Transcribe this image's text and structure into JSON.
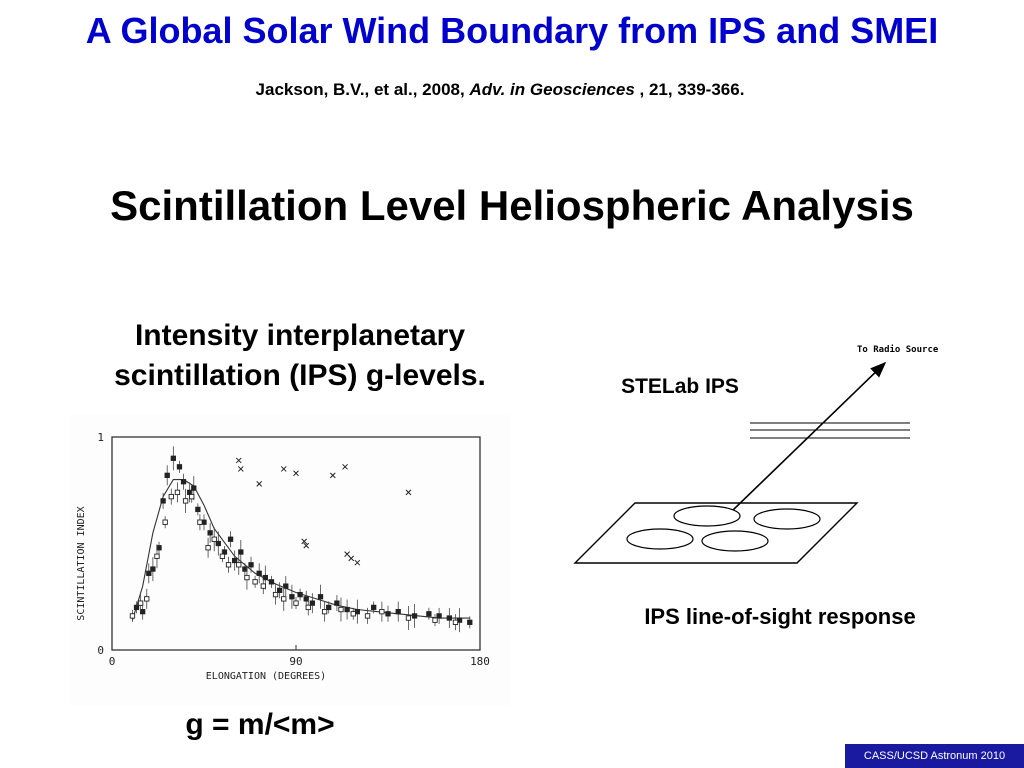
{
  "slide": {
    "title": "A Global Solar Wind Boundary from IPS and SMEI",
    "citation": {
      "authors": "Jackson, B.V., et al., 2008, ",
      "journal": "Adv. in Geosciences",
      "rest": " , 21, 339-366."
    },
    "heading": "Scintillation Level Heliospheric Analysis",
    "left_caption": "Intensity interplanetary scintillation (IPS) g-levels.",
    "formula": "g = m/<m>",
    "stelab_label": "STELab IPS",
    "right_caption": "IPS line-of-sight response",
    "radio_source_label": "To Radio Source",
    "footer": "CASS/UCSD Astronum 2010"
  },
  "chart_data": {
    "type": "scatter",
    "xlabel": "ELONGATION (DEGREES)",
    "ylabel": "SCINTILLATION INDEX",
    "xlim": [
      0,
      180
    ],
    "ylim": [
      0,
      1
    ],
    "x_ticks": [
      "0",
      "90",
      "180"
    ],
    "y_ticks": [
      "0",
      "1"
    ],
    "curve": {
      "x": [
        10,
        15,
        20,
        25,
        30,
        35,
        40,
        45,
        50,
        60,
        70,
        80,
        90,
        100,
        110,
        120,
        130,
        140,
        150,
        160,
        170,
        175
      ],
      "y": [
        0.14,
        0.3,
        0.55,
        0.72,
        0.8,
        0.8,
        0.77,
        0.68,
        0.57,
        0.44,
        0.36,
        0.31,
        0.27,
        0.24,
        0.21,
        0.19,
        0.18,
        0.17,
        0.16,
        0.15,
        0.15,
        0.15
      ]
    },
    "series": [
      {
        "marker": "filled-square",
        "x": [
          12,
          15,
          18,
          20,
          23,
          25,
          27,
          30,
          33,
          35,
          38,
          40,
          42,
          45,
          48,
          52,
          55,
          58,
          60,
          63,
          65,
          68,
          72,
          75,
          78,
          82,
          85,
          88,
          92,
          95,
          98,
          102,
          106,
          110,
          115,
          120,
          128,
          135,
          140,
          148,
          155,
          160,
          165,
          170,
          175
        ],
        "y": [
          0.2,
          0.18,
          0.36,
          0.38,
          0.48,
          0.7,
          0.82,
          0.9,
          0.86,
          0.79,
          0.74,
          0.76,
          0.66,
          0.6,
          0.55,
          0.5,
          0.46,
          0.52,
          0.42,
          0.46,
          0.38,
          0.4,
          0.36,
          0.34,
          0.32,
          0.28,
          0.3,
          0.25,
          0.26,
          0.24,
          0.22,
          0.25,
          0.2,
          0.22,
          0.19,
          0.18,
          0.2,
          0.17,
          0.18,
          0.16,
          0.17,
          0.16,
          0.15,
          0.14,
          0.13
        ]
      },
      {
        "marker": "open-square",
        "x": [
          10,
          14,
          17,
          22,
          26,
          29,
          32,
          36,
          39,
          43,
          47,
          50,
          54,
          57,
          62,
          66,
          70,
          74,
          80,
          84,
          90,
          96,
          104,
          112,
          118,
          125,
          132,
          145,
          158,
          168
        ],
        "y": [
          0.16,
          0.22,
          0.24,
          0.44,
          0.6,
          0.72,
          0.74,
          0.7,
          0.72,
          0.6,
          0.48,
          0.52,
          0.44,
          0.4,
          0.4,
          0.34,
          0.32,
          0.3,
          0.26,
          0.24,
          0.22,
          0.2,
          0.18,
          0.19,
          0.17,
          0.16,
          0.18,
          0.15,
          0.14,
          0.13
        ]
      },
      {
        "marker": "cross",
        "x": [
          62,
          63,
          72,
          84,
          90,
          108,
          114,
          145,
          94,
          95,
          115,
          117,
          120
        ],
        "y": [
          0.89,
          0.85,
          0.78,
          0.85,
          0.83,
          0.82,
          0.86,
          0.74,
          0.51,
          0.49,
          0.45,
          0.43,
          0.41
        ]
      }
    ]
  }
}
